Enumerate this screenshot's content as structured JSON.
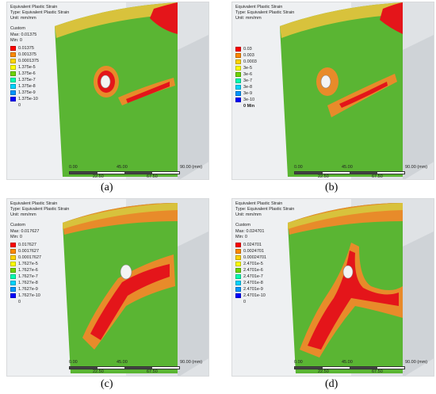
{
  "colors": {
    "contour": [
      "#ff0000",
      "#ff8a00",
      "#ffd400",
      "#ffff00",
      "#6fd400",
      "#00ffb0",
      "#00d4ff",
      "#0096ff",
      "#0000ff"
    ],
    "green": "#5ab533",
    "red": "#e4151a",
    "orange": "#e88b2a",
    "yellow": "#d8c23c",
    "background": "#eef0f2"
  },
  "panels": [
    {
      "caption": "(a)",
      "header": {
        "line1": "Equivalent Plastic Strain",
        "line2": "Type: Equivalent Plastic Strain",
        "line3": "Unit: mm/mm"
      },
      "legend": {
        "title": "Custom",
        "max": "Max: 0.01375",
        "min": "Min: 0",
        "labels": [
          "0.01375",
          "0.001375",
          "0.0001375",
          "1.375e-5",
          "1.375e-6",
          "1.375e-7",
          "1.375e-8",
          "1.375e-9",
          "1.375e-10",
          "0"
        ],
        "min_bold": false
      },
      "scale": {
        "t0": "0.00",
        "t1": "45.00",
        "t2": "90.00 (mm)",
        "b1": "22.50",
        "b2": "67.50"
      }
    },
    {
      "caption": "(b)",
      "header": {
        "line1": "Equivalent Plastic Strain",
        "line2": "Type: Equivalent Plastic Strain",
        "line3": "Unit: mm/mm"
      },
      "legend": {
        "title": "",
        "max": "",
        "min": "",
        "labels": [
          "0.03",
          "0.003",
          "0.0003",
          "3e-5",
          "3e-6",
          "3e-7",
          "3e-8",
          "3e-9",
          "3e-10",
          "0 Min"
        ],
        "min_bold": true
      },
      "scale": {
        "t0": "0.00",
        "t1": "45.00",
        "t2": "90.00 (mm)",
        "b1": "22.50",
        "b2": "67.50"
      }
    },
    {
      "caption": "(c)",
      "header": {
        "line1": "Equivalent Plastic Strain",
        "line2": "Type: Equivalent Plastic Strain",
        "line3": "Unit: mm/mm"
      },
      "legend": {
        "title": "Custom",
        "max": "Max: 0.017627",
        "min": "Min: 0",
        "labels": [
          "0.017627",
          "0.0017627",
          "0.00017627",
          "1.7627e-5",
          "1.7627e-6",
          "1.7627e-7",
          "1.7627e-8",
          "1.7627e-9",
          "1.7627e-10",
          "0"
        ],
        "min_bold": false
      },
      "scale": {
        "t0": "0.00",
        "t1": "45.00",
        "t2": "90.00 (mm)",
        "b1": "22.50",
        "b2": "67.50"
      }
    },
    {
      "caption": "(d)",
      "header": {
        "line1": "Equivalent Plastic Strain",
        "line2": "Type: Equivalent Plastic Strain",
        "line3": "Unit: mm/mm"
      },
      "legend": {
        "title": "Custom",
        "max": "Max: 0.024701",
        "min": "Min: 0",
        "labels": [
          "0.024701",
          "0.0024701",
          "0.00024701",
          "2.4701e-5",
          "2.4701e-6",
          "2.4701e-7",
          "2.4701e-8",
          "2.4701e-9",
          "2.4701e-10",
          "0"
        ],
        "min_bold": false
      },
      "scale": {
        "t0": "0.00",
        "t1": "45.00",
        "t2": "90.00 (mm)",
        "b1": "22.50",
        "b2": "67.50"
      }
    }
  ]
}
